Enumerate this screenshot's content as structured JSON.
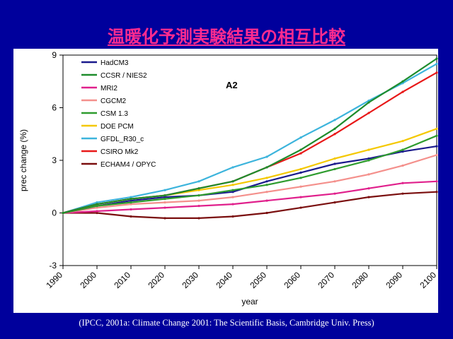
{
  "slide": {
    "title": "温暖化予測実験結果の相互比較",
    "citation": "(IPCC, 2001a: Climate Change 2001: The Scientific Basis, Cambridge Univ. Press)"
  },
  "colors": {
    "background": "#00009c",
    "title": "#ff2b8f",
    "panel": "#ffffff"
  },
  "chart_data": {
    "type": "line",
    "title": "",
    "annotation": "A2",
    "xlabel": "year",
    "ylabel": "prec change (%)",
    "xlim": [
      1990,
      2100
    ],
    "ylim": [
      -3,
      9
    ],
    "xticks": [
      1990,
      2000,
      2010,
      2020,
      2030,
      2040,
      2050,
      2060,
      2070,
      2080,
      2090,
      2100
    ],
    "yticks": [
      -3,
      0,
      3,
      6,
      9
    ],
    "grid": false,
    "legend_position": "top-left",
    "series": [
      {
        "name": "HadCM3",
        "color": "#1a1a8c",
        "x": [
          1990,
          2000,
          2010,
          2020,
          2030,
          2040,
          2050,
          2060,
          2070,
          2080,
          2090,
          2100
        ],
        "y": [
          0.0,
          0.4,
          0.7,
          0.9,
          1.0,
          1.2,
          1.8,
          2.3,
          2.8,
          3.1,
          3.5,
          3.8
        ]
      },
      {
        "name": "CCSR / NIES2",
        "color": "#1e8c2c",
        "x": [
          1990,
          2000,
          2010,
          2020,
          2030,
          2040,
          2050,
          2060,
          2070,
          2080,
          2090,
          2100
        ],
        "y": [
          0.0,
          0.5,
          0.8,
          1.0,
          1.4,
          1.8,
          2.6,
          3.6,
          4.8,
          6.3,
          7.5,
          8.8
        ]
      },
      {
        "name": "MRI2",
        "color": "#e0208c",
        "x": [
          1990,
          2000,
          2010,
          2020,
          2030,
          2040,
          2050,
          2060,
          2070,
          2080,
          2090,
          2100
        ],
        "y": [
          0.0,
          0.1,
          0.2,
          0.3,
          0.4,
          0.5,
          0.7,
          0.9,
          1.1,
          1.4,
          1.7,
          1.8
        ]
      },
      {
        "name": "CGCM2",
        "color": "#f4908c",
        "x": [
          1990,
          2000,
          2010,
          2020,
          2030,
          2040,
          2050,
          2060,
          2070,
          2080,
          2090,
          2100
        ],
        "y": [
          0.0,
          0.3,
          0.5,
          0.6,
          0.7,
          0.9,
          1.2,
          1.5,
          1.8,
          2.2,
          2.7,
          3.3
        ]
      },
      {
        "name": "CSM 1.3",
        "color": "#2e9c2e",
        "x": [
          1990,
          2000,
          2010,
          2020,
          2030,
          2040,
          2050,
          2060,
          2070,
          2080,
          2090,
          2100
        ],
        "y": [
          0.0,
          0.4,
          0.6,
          0.8,
          1.0,
          1.3,
          1.6,
          2.0,
          2.5,
          3.0,
          3.6,
          4.4
        ]
      },
      {
        "name": "DOE PCM",
        "color": "#f4c800",
        "x": [
          1990,
          2000,
          2010,
          2020,
          2030,
          2040,
          2050,
          2060,
          2070,
          2080,
          2090,
          2100
        ],
        "y": [
          0.0,
          0.5,
          0.8,
          1.0,
          1.3,
          1.6,
          2.0,
          2.5,
          3.1,
          3.6,
          4.1,
          4.8
        ]
      },
      {
        "name": "GFDL_R30_c",
        "color": "#3cb4dc",
        "x": [
          1990,
          2000,
          2010,
          2020,
          2030,
          2040,
          2050,
          2060,
          2070,
          2080,
          2090,
          2100
        ],
        "y": [
          0.0,
          0.6,
          0.9,
          1.3,
          1.8,
          2.6,
          3.2,
          4.3,
          5.3,
          6.4,
          7.4,
          8.5
        ]
      },
      {
        "name": "CSIRO Mk2",
        "color": "#e81818",
        "x": [
          1990,
          2000,
          2010,
          2020,
          2030,
          2040,
          2050,
          2060,
          2070,
          2080,
          2090,
          2100
        ],
        "y": [
          0.0,
          0.5,
          0.8,
          1.0,
          1.4,
          1.8,
          2.6,
          3.4,
          4.5,
          5.7,
          6.9,
          8.0
        ]
      },
      {
        "name": "ECHAM4 / OPYC",
        "color": "#7a0e0e",
        "x": [
          1990,
          2000,
          2010,
          2020,
          2030,
          2040,
          2050,
          2060,
          2070,
          2080,
          2090,
          2100
        ],
        "y": [
          0.0,
          0.0,
          -0.2,
          -0.3,
          -0.3,
          -0.2,
          0.0,
          0.3,
          0.6,
          0.9,
          1.1,
          1.2
        ]
      }
    ]
  }
}
